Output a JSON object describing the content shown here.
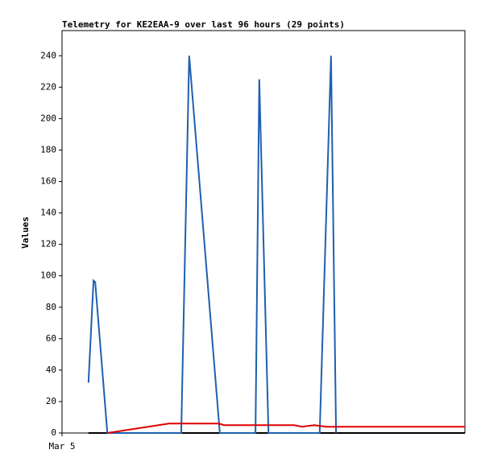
{
  "chart_data": {
    "type": "line",
    "title": "Telemetry for KE2EAA-9 over last 96 hours (29 points)",
    "y_label": "Values",
    "xlim": [
      0,
      96
    ],
    "xticks": [
      {
        "value": 0,
        "label": "Mar 5"
      }
    ],
    "ylim": [
      0,
      256
    ],
    "yticks": [
      0,
      20,
      40,
      60,
      80,
      100,
      120,
      140,
      160,
      180,
      200,
      220,
      240
    ],
    "series": [
      {
        "color": "#000000",
        "x": [
          6.3,
          96
        ],
        "values": [
          0,
          0
        ]
      },
      {
        "color": "#1f5fb0",
        "x": [
          6.3,
          7.5,
          7.9,
          10.8,
          28.4,
          30.3,
          37.6,
          46.1,
          47.0,
          49.2,
          61.4,
          64.1,
          65.3
        ],
        "values": [
          32,
          97,
          96,
          0,
          0,
          240,
          0,
          0,
          225,
          0,
          0,
          240,
          0
        ]
      },
      {
        "color": "#e00000",
        "x": [
          10.8,
          25.5,
          37.4,
          38.6,
          55.3,
          57.2,
          60.1,
          63.0,
          96
        ],
        "values": [
          0,
          6,
          6,
          5,
          5,
          4,
          5,
          4,
          4
        ]
      }
    ]
  }
}
